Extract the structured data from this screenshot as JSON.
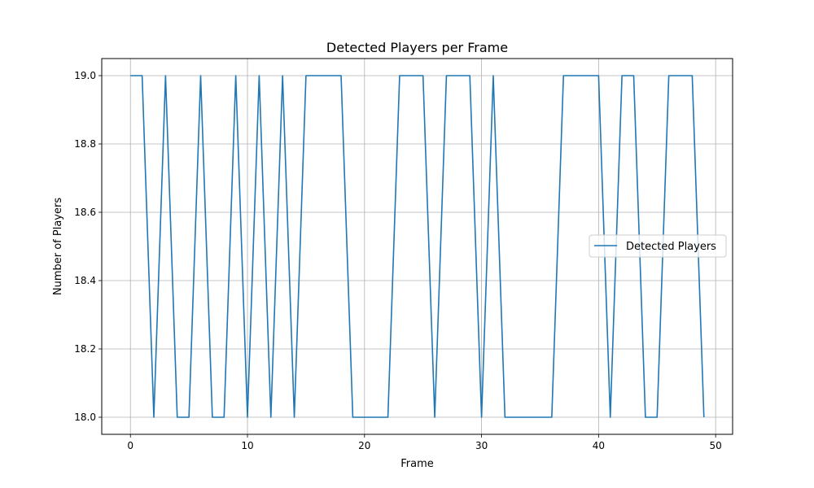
{
  "chart_data": {
    "type": "line",
    "title": "Detected Players per Frame",
    "xlabel": "Frame",
    "ylabel": "Number of Players",
    "xlim": [
      -2.45,
      51.45
    ],
    "ylim": [
      17.95,
      19.05
    ],
    "xticks": [
      0,
      10,
      20,
      30,
      40,
      50
    ],
    "xtick_labels": [
      "0",
      "10",
      "20",
      "30",
      "40",
      "50"
    ],
    "yticks": [
      18.0,
      18.2,
      18.4,
      18.6,
      18.8,
      19.0
    ],
    "ytick_labels": [
      "18.0",
      "18.2",
      "18.4",
      "18.6",
      "18.8",
      "19.0"
    ],
    "grid": true,
    "legend_position": "center-right",
    "series": [
      {
        "name": "Detected Players",
        "color": "#1f77b4",
        "x": [
          0,
          1,
          2,
          3,
          4,
          5,
          6,
          7,
          8,
          9,
          10,
          11,
          12,
          13,
          14,
          15,
          16,
          17,
          18,
          19,
          20,
          21,
          22,
          23,
          24,
          25,
          26,
          27,
          28,
          29,
          30,
          31,
          32,
          33,
          34,
          35,
          36,
          37,
          38,
          39,
          40,
          41,
          42,
          43,
          44,
          45,
          46,
          47,
          48,
          49
        ],
        "y": [
          19,
          19,
          18,
          19,
          18,
          18,
          19,
          18,
          18,
          19,
          18,
          19,
          18,
          19,
          18,
          19,
          19,
          19,
          19,
          18,
          18,
          18,
          18,
          19,
          19,
          19,
          18,
          19,
          19,
          19,
          18,
          19,
          18,
          18,
          18,
          18,
          18,
          19,
          19,
          19,
          19,
          18,
          19,
          19,
          18,
          18,
          19,
          19,
          19,
          18
        ]
      }
    ]
  }
}
